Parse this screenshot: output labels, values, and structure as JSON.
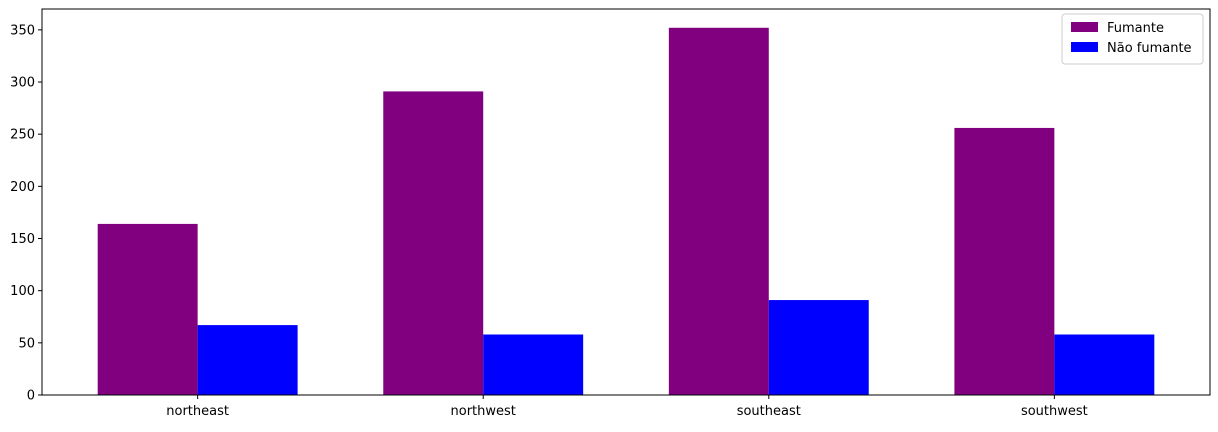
{
  "chart_data": {
    "type": "bar",
    "categories": [
      "northeast",
      "northwest",
      "southeast",
      "southwest"
    ],
    "series": [
      {
        "name": "Fumante",
        "values": [
          164,
          291,
          352,
          256
        ],
        "color": "#800080"
      },
      {
        "name": "Não fumante",
        "values": [
          67,
          58,
          91,
          58
        ],
        "color": "#0000ff"
      }
    ],
    "title": "",
    "xlabel": "",
    "ylabel": "",
    "ylim": [
      0,
      370
    ],
    "yticks": [
      0,
      50,
      100,
      150,
      200,
      250,
      300,
      350
    ],
    "legend": "top-right",
    "grid": false
  }
}
